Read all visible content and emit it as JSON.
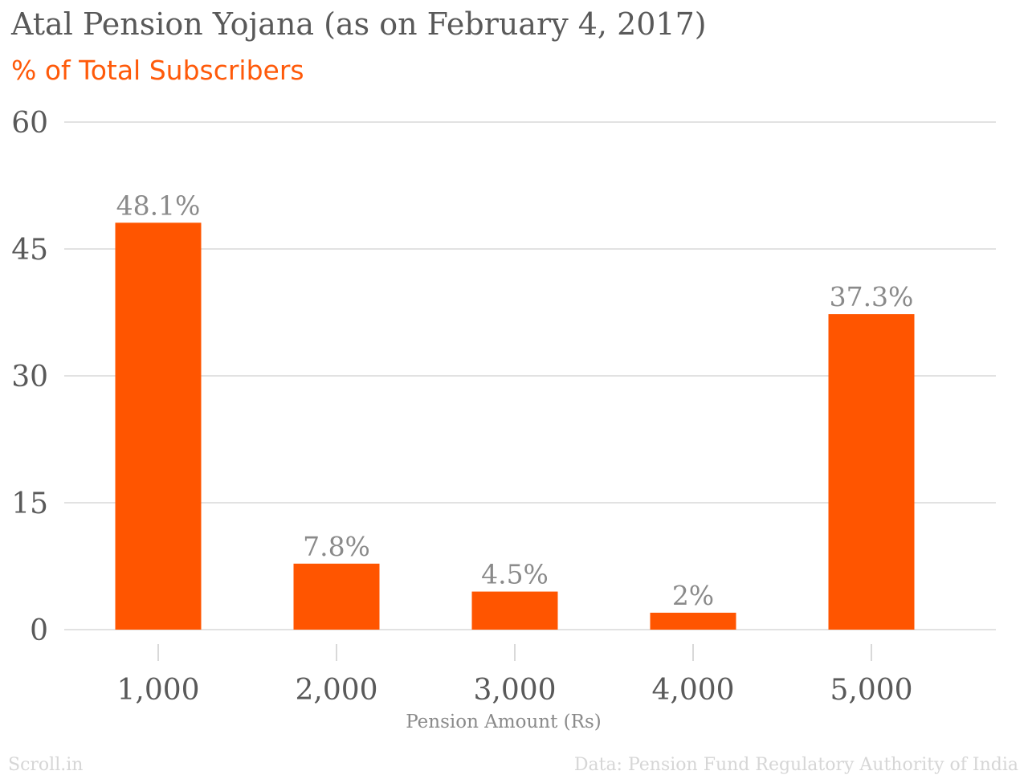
{
  "chart_data": {
    "type": "bar",
    "title": "Atal Pension Yojana (as on February 4, 2017)",
    "subtitle": "% of Total Subscribers",
    "xlabel": "Pension Amount (Rs)",
    "ylabel": "",
    "categories": [
      "1,000",
      "2,000",
      "3,000",
      "4,000",
      "5,000"
    ],
    "values": [
      48.1,
      7.8,
      4.5,
      2,
      37.3
    ],
    "data_labels": [
      "48.1%",
      "7.8%",
      "4.5%",
      "2%",
      "37.3%"
    ],
    "ylim": [
      0,
      60
    ],
    "yticks": [
      0,
      15,
      30,
      45,
      60
    ],
    "grid": true,
    "bar_color": "#ff5500"
  },
  "footer": {
    "brand": "Scroll.in",
    "source": "Data: Pension Fund Regulatory Authority of India"
  }
}
